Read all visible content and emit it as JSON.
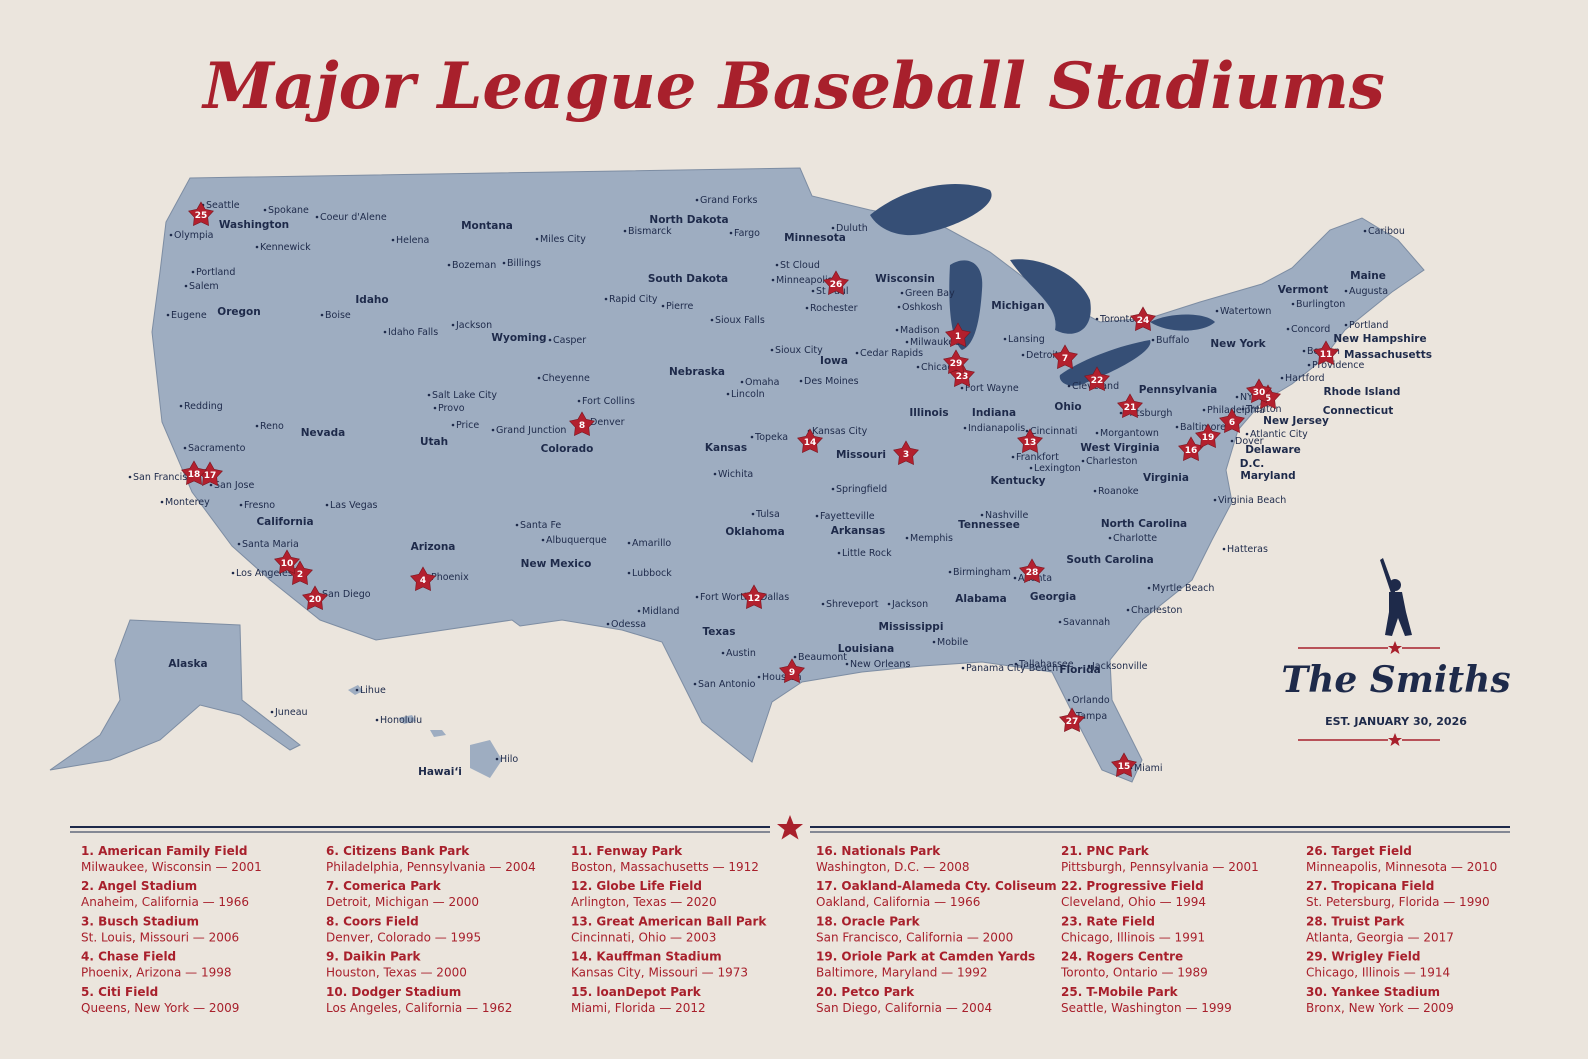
{
  "title": "Major League Baseball Stadiums",
  "map": {
    "states": [
      "Washington",
      "Oregon",
      "California",
      "Nevada",
      "Idaho",
      "Montana",
      "Wyoming",
      "Utah",
      "Arizona",
      "Colorado",
      "New Mexico",
      "North Dakota",
      "South Dakota",
      "Nebraska",
      "Kansas",
      "Oklahoma",
      "Texas",
      "Minnesota",
      "Iowa",
      "Missouri",
      "Arkansas",
      "Louisiana",
      "Wisconsin",
      "Illinois",
      "Michigan",
      "Indiana",
      "Ohio",
      "Kentucky",
      "Tennessee",
      "Mississippi",
      "Alabama",
      "Georgia",
      "Florida",
      "South Carolina",
      "North Carolina",
      "Virginia",
      "West Virginia",
      "Pennsylvania",
      "New York",
      "Vermont",
      "Maine",
      "New Hampshire",
      "Massachusetts",
      "Rhode Island",
      "Connecticut",
      "New Jersey",
      "Delaware",
      "D.C.",
      "Maryland",
      "Alaska",
      "Hawaiʻi"
    ],
    "cities": [
      "Seattle",
      "Spokane",
      "Coeur d'Alene",
      "Olympia",
      "Kennewick",
      "Helena",
      "Miles City",
      "Bozeman",
      "Billings",
      "Portland",
      "Salem",
      "Eugene",
      "Boise",
      "Idaho Falls",
      "Jackson",
      "Casper",
      "Cheyenne",
      "Salt Lake City",
      "Provo",
      "Price",
      "Grand Junction",
      "Fort Collins",
      "Denver",
      "Redding",
      "Reno",
      "Sacramento",
      "San Francisco",
      "San Jose",
      "Monterey",
      "Fresno",
      "Las Vegas",
      "Santa Maria",
      "Los Angeles",
      "San Diego",
      "Phoenix",
      "Santa Fe",
      "Albuquerque",
      "Amarillo",
      "Lubbock",
      "Midland",
      "Odessa",
      "Fort Worth",
      "Dallas",
      "Austin",
      "San Antonio",
      "Houston",
      "Beaumont",
      "Grand Forks",
      "Bismarck",
      "Fargo",
      "Rapid City",
      "Pierre",
      "Sioux Falls",
      "Omaha",
      "Lincoln",
      "Sioux City",
      "Wichita",
      "Topeka",
      "Kansas City",
      "Tulsa",
      "Duluth",
      "St Cloud",
      "Minneapolis",
      "St Paul",
      "Rochester",
      "Des Moines",
      "Cedar Rapids",
      "Springfield",
      "Fayetteville",
      "Little Rock",
      "Memphis",
      "Shreveport",
      "Jackson",
      "New Orleans",
      "Mobile",
      "Green Bay",
      "Oshkosh",
      "Madison",
      "Milwaukee",
      "Chicago",
      "Lansing",
      "Detroit",
      "Fort Wayne",
      "Indianapolis",
      "Cincinnati",
      "Frankfort",
      "Lexington",
      "Nashville",
      "Birmingham",
      "Atlanta",
      "Cleveland",
      "Pittsburgh",
      "Morgantown",
      "Charleston",
      "Roanoke",
      "Charlotte",
      "Myrtle Beach",
      "Charleston",
      "Savannah",
      "Tallahassee",
      "Jacksonville",
      "Panama City Beach",
      "Orlando",
      "Tampa",
      "Miami",
      "Toronto",
      "Buffalo",
      "Watertown",
      "Philadelphia",
      "Trenton",
      "NYC",
      "Atlantic City",
      "Baltimore",
      "Dover",
      "Virginia Beach",
      "Hatteras",
      "Burlington",
      "Augusta",
      "Portland",
      "Concord",
      "Boston",
      "Providence",
      "Hartford",
      "Caribou",
      "Juneau",
      "Lihue",
      "Honolulu",
      "Hilo"
    ]
  },
  "stadiums": [
    {
      "marker": "1",
      "name": "1. American Family Field",
      "location": "Milwaukee, Wisconsin — 2001"
    },
    {
      "marker": "2",
      "name": "2. Angel Stadium",
      "location": "Anaheim, California — 1966"
    },
    {
      "marker": "3",
      "name": "3. Busch Stadium",
      "location": "St. Louis, Missouri — 2006"
    },
    {
      "marker": "4",
      "name": "4. Chase Field",
      "location": "Phoenix, Arizona — 1998"
    },
    {
      "marker": "5",
      "name": "5. Citi Field",
      "location": "Queens, New York — 2009"
    },
    {
      "marker": "6",
      "name": "6. Citizens Bank Park",
      "location": "Philadelphia, Pennsylvania — 2004"
    },
    {
      "marker": "7",
      "name": "7. Comerica Park",
      "location": "Detroit, Michigan — 2000"
    },
    {
      "marker": "8",
      "name": "8. Coors Field",
      "location": "Denver, Colorado — 1995"
    },
    {
      "marker": "9",
      "name": "9. Daikin Park",
      "location": "Houston, Texas — 2000"
    },
    {
      "marker": "10",
      "name": "10. Dodger Stadium",
      "location": "Los Angeles, California — 1962"
    },
    {
      "marker": "11",
      "name": "11. Fenway Park",
      "location": "Boston, Massachusetts — 1912"
    },
    {
      "marker": "12",
      "name": "12. Globe Life Field",
      "location": "Arlington, Texas — 2020"
    },
    {
      "marker": "13",
      "name": "13. Great American Ball Park",
      "location": "Cincinnati, Ohio — 2003"
    },
    {
      "marker": "14",
      "name": "14. Kauffman Stadium",
      "location": "Kansas City, Missouri — 1973"
    },
    {
      "marker": "15",
      "name": "15. loanDepot Park",
      "location": "Miami, Florida — 2012"
    },
    {
      "marker": "16",
      "name": "16. Nationals Park",
      "location": "Washington, D.C. — 2008"
    },
    {
      "marker": "17",
      "name": "17. Oakland-Alameda Cty. Coliseum",
      "location": "Oakland, California — 1966"
    },
    {
      "marker": "18",
      "name": "18. Oracle Park",
      "location": "San Francisco, California — 2000"
    },
    {
      "marker": "19",
      "name": "19. Oriole Park at Camden Yards",
      "location": "Baltimore, Maryland — 1992"
    },
    {
      "marker": "20",
      "name": "20. Petco Park",
      "location": "San Diego, California — 2004"
    },
    {
      "marker": "21",
      "name": "21. PNC Park",
      "location": "Pittsburgh, Pennsylvania — 2001"
    },
    {
      "marker": "22",
      "name": "22. Progressive Field",
      "location": "Cleveland, Ohio — 1994"
    },
    {
      "marker": "23",
      "name": "23. Rate Field",
      "location": "Chicago, Illinois — 1991"
    },
    {
      "marker": "24",
      "name": "24. Rogers Centre",
      "location": "Toronto, Ontario — 1989"
    },
    {
      "marker": "25",
      "name": "25. T-Mobile Park",
      "location": "Seattle, Washington — 1999"
    },
    {
      "marker": "26",
      "name": "26. Target Field",
      "location": "Minneapolis, Minnesota — 2010"
    },
    {
      "marker": "27",
      "name": "27. Tropicana Field",
      "location": "St. Petersburg, Florida — 1990"
    },
    {
      "marker": "28",
      "name": "28. Truist Park",
      "location": "Atlanta, Georgia — 2017"
    },
    {
      "marker": "29",
      "name": "29. Wrigley Field",
      "location": "Chicago, Illinois — 1914"
    },
    {
      "marker": "30",
      "name": "30. Yankee Stadium",
      "location": "Bronx, New York — 2009"
    }
  ],
  "family": {
    "name": "The Smiths",
    "established": "EST. JANUARY 30, 2026"
  }
}
